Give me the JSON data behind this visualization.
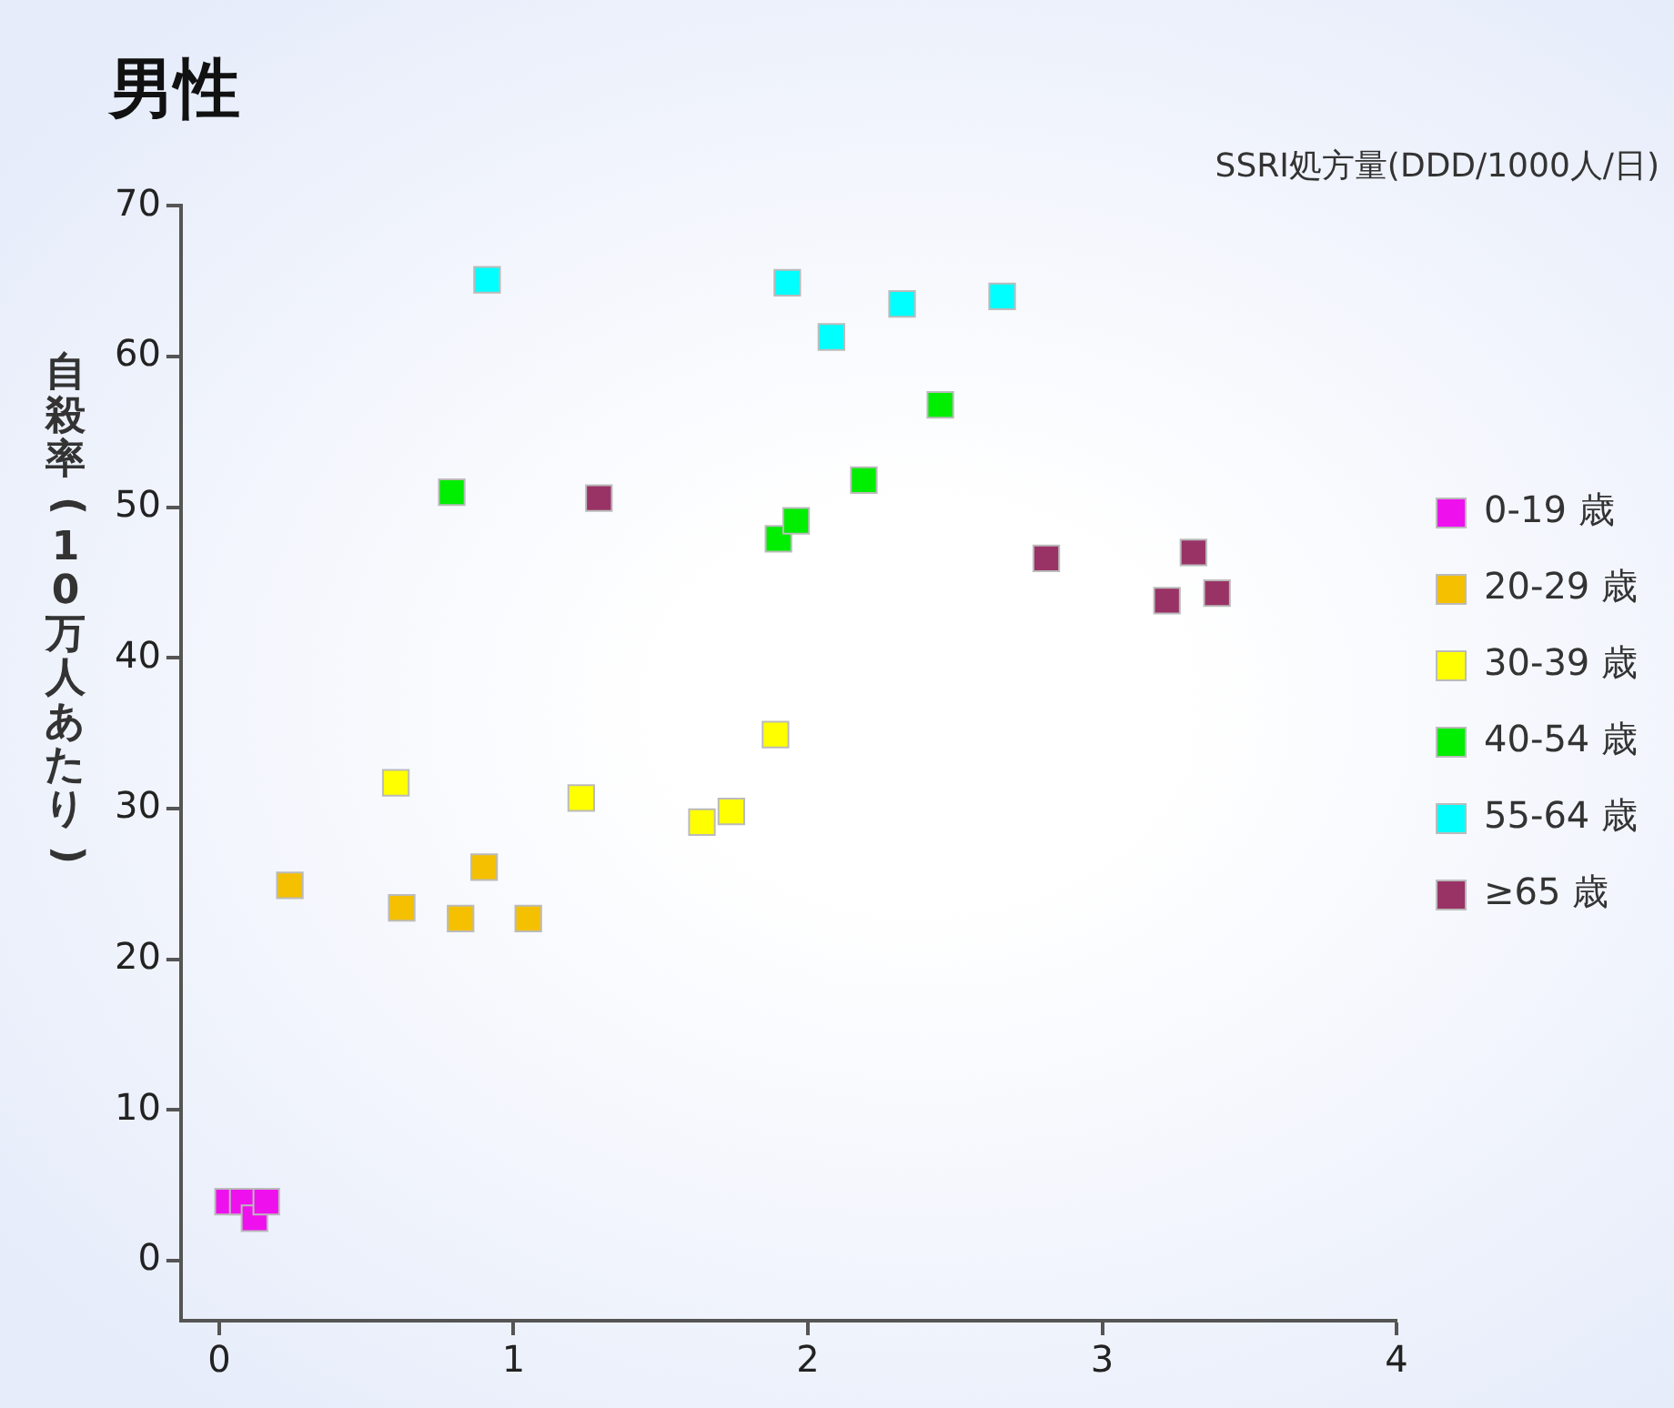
{
  "chart_data": {
    "type": "scatter",
    "title": "男性",
    "xlabel": "SSRI処方量(DDD/1000人/日)",
    "ylabel": "自殺率(10万人あたり)",
    "xlim": [
      -0.13,
      4
    ],
    "ylim": [
      -4,
      70
    ],
    "xticks": [
      0,
      1,
      2,
      3,
      4
    ],
    "yticks": [
      0,
      10,
      20,
      30,
      40,
      50,
      60,
      70
    ],
    "grid": false,
    "legend": "right",
    "marker": "square",
    "series": [
      {
        "name": "0-19 歳",
        "color": "#ee11ee",
        "x": [
          0.03,
          0.08,
          0.12,
          0.16
        ],
        "values": [
          3.9,
          3.9,
          2.8,
          3.9
        ]
      },
      {
        "name": "20-29 歳",
        "color": "#f5c000",
        "x": [
          0.24,
          0.62,
          0.82,
          0.9,
          1.05
        ],
        "values": [
          24.9,
          23.4,
          22.7,
          26.1,
          22.7
        ]
      },
      {
        "name": "30-39 歳",
        "color": "#ffff00",
        "x": [
          0.6,
          1.23,
          1.64,
          1.74,
          1.89
        ],
        "values": [
          31.7,
          30.7,
          29.1,
          29.8,
          34.9
        ]
      },
      {
        "name": "40-54 歳",
        "color": "#00ee00",
        "x": [
          0.79,
          1.9,
          1.96,
          2.19,
          2.45
        ],
        "values": [
          51.0,
          47.9,
          49.1,
          51.8,
          56.8
        ]
      },
      {
        "name": "55-64 歳",
        "color": "#00ffff",
        "x": [
          0.91,
          1.93,
          2.08,
          2.32,
          2.66
        ],
        "values": [
          65.1,
          64.9,
          61.3,
          63.5,
          64.0
        ]
      },
      {
        "name": "≥65 歳",
        "color": "#993366",
        "x": [
          1.29,
          2.81,
          3.22,
          3.31,
          3.39
        ],
        "values": [
          50.6,
          46.6,
          43.8,
          47.0,
          44.3
        ]
      }
    ]
  }
}
